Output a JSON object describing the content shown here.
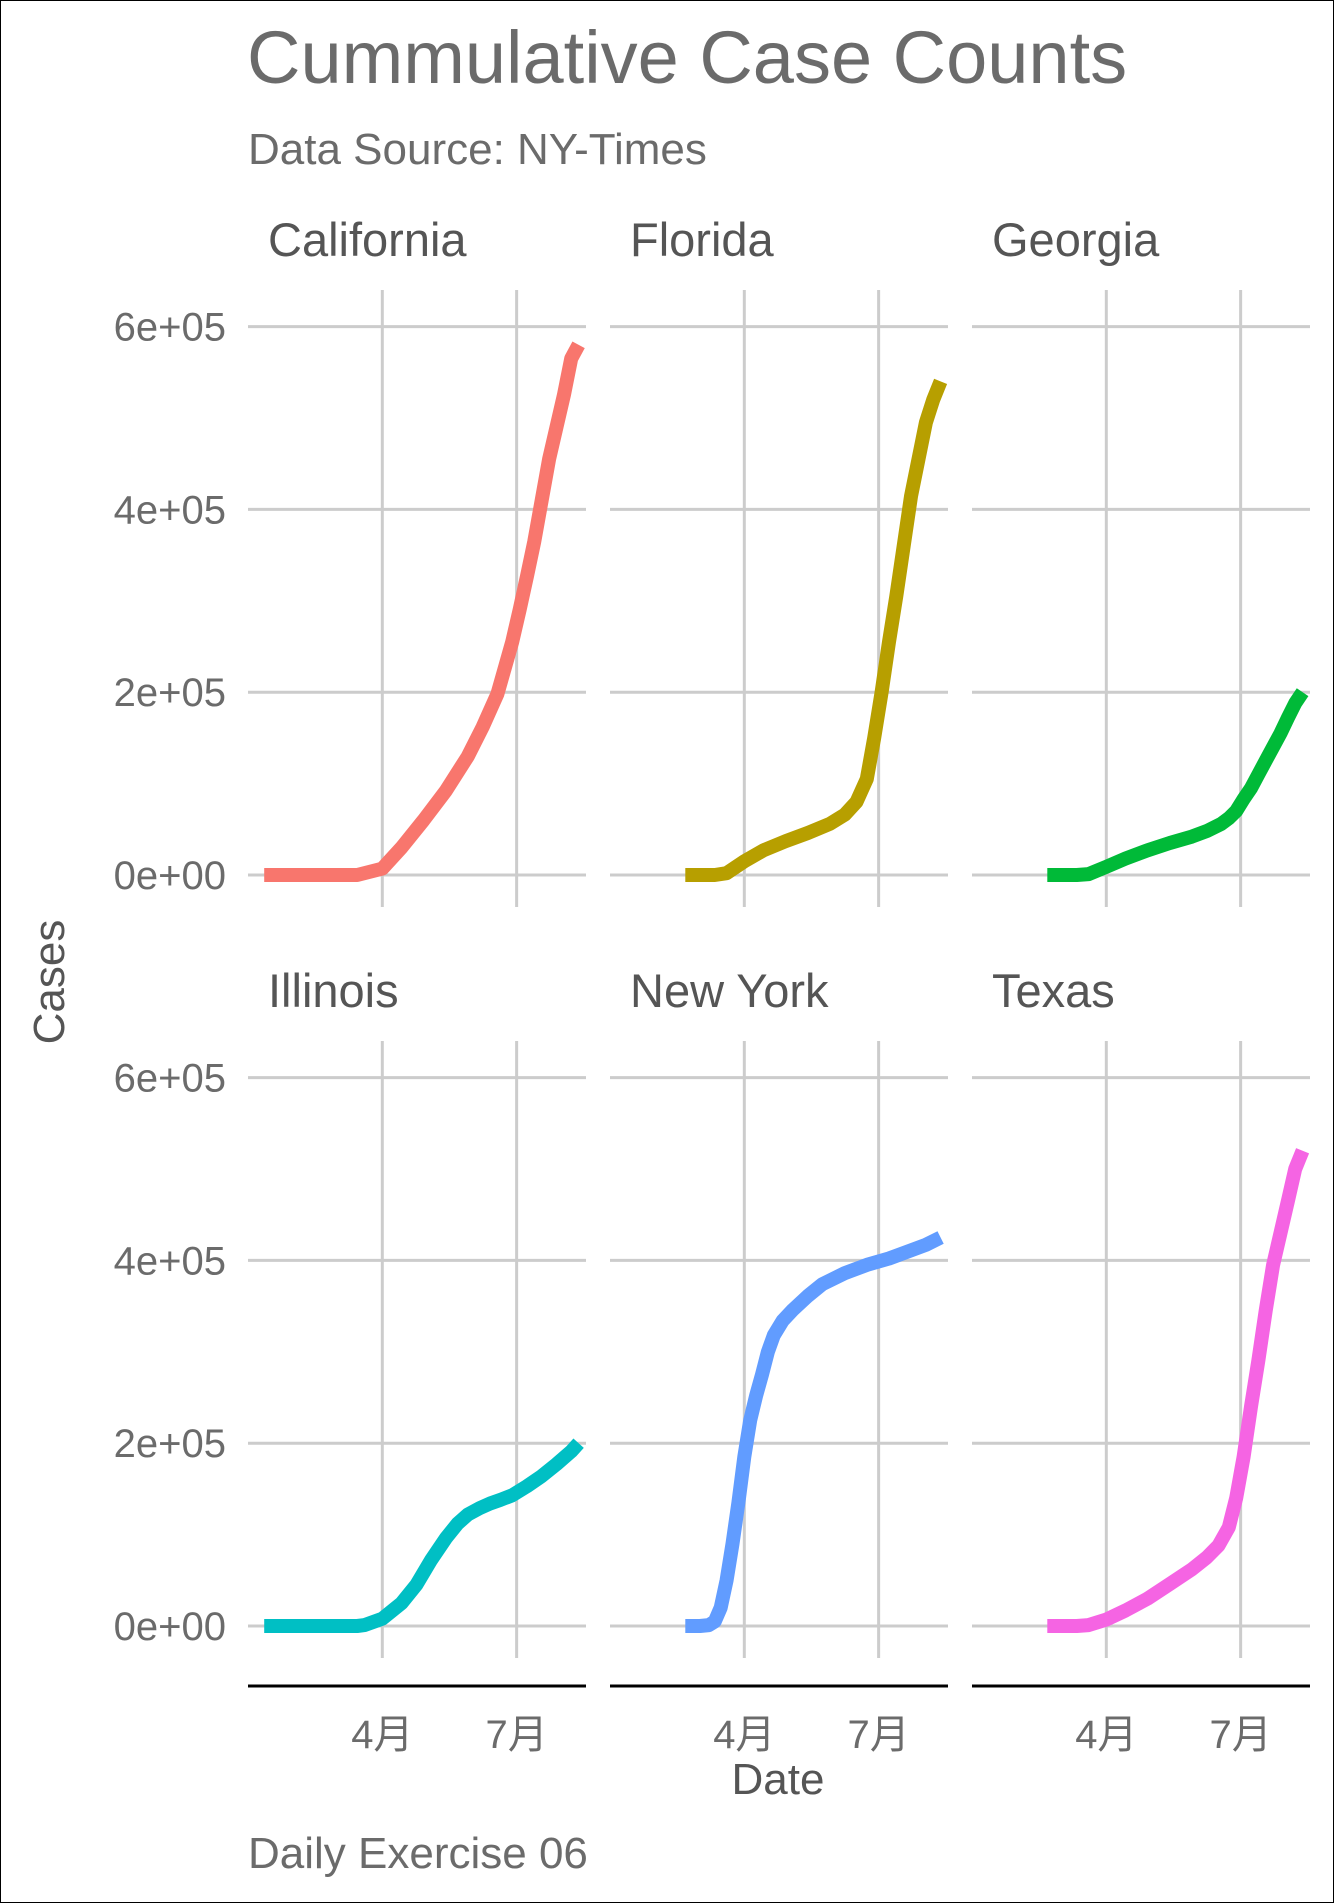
{
  "chart_data": {
    "type": "line",
    "title": "Cummulative Case Counts",
    "subtitle": "Data Source: NY-Times",
    "caption": "Daily Exercise 06",
    "xlabel": "Date",
    "ylabel": "Cases",
    "x_unit": "day-of-year 2020",
    "xlim": [
      1,
      230
    ],
    "ylim": [
      -35000,
      640000
    ],
    "y_ticks": [
      0,
      200000,
      400000,
      600000
    ],
    "y_tick_labels": [
      "0e+00",
      "2e+05",
      "4e+05",
      "6e+05"
    ],
    "x_ticks": [
      92,
      183
    ],
    "x_tick_labels": [
      "4月",
      "7月"
    ],
    "grid": true,
    "legend": "none",
    "facets": [
      {
        "name": "California",
        "color": "#F8766D",
        "x": [
          12,
          40,
          60,
          75,
          92,
          105,
          120,
          135,
          150,
          160,
          170,
          180,
          185,
          190,
          195,
          200,
          205,
          210,
          215,
          220,
          225
        ],
        "y": [
          0,
          0,
          0,
          0,
          7000,
          30000,
          60000,
          92000,
          130000,
          162000,
          198000,
          255000,
          290000,
          327000,
          365000,
          410000,
          455000,
          490000,
          525000,
          565000,
          580000
        ]
      },
      {
        "name": "Florida",
        "color": "#B79F00",
        "x": [
          52,
          65,
          72,
          80,
          92,
          105,
          120,
          135,
          150,
          160,
          168,
          175,
          180,
          185,
          190,
          195,
          200,
          205,
          210,
          215,
          220,
          225
        ],
        "y": [
          0,
          0,
          0,
          2000,
          15000,
          27000,
          37000,
          46000,
          56000,
          66000,
          80000,
          105000,
          150000,
          200000,
          255000,
          305000,
          360000,
          415000,
          455000,
          495000,
          520000,
          540000
        ]
      },
      {
        "name": "Georgia",
        "color": "#00BA38",
        "x": [
          52,
          65,
          72,
          80,
          92,
          105,
          120,
          135,
          150,
          160,
          170,
          175,
          180,
          185,
          190,
          195,
          200,
          205,
          210,
          215,
          220,
          225
        ],
        "y": [
          0,
          0,
          0,
          1000,
          9000,
          18000,
          27000,
          35000,
          42000,
          48000,
          56000,
          62000,
          70000,
          83000,
          95000,
          110000,
          125000,
          140000,
          155000,
          172000,
          188000,
          200000
        ]
      },
      {
        "name": "Illinois",
        "color": "#00BFC4",
        "x": [
          12,
          40,
          60,
          75,
          80,
          92,
          105,
          115,
          125,
          135,
          143,
          150,
          158,
          165,
          172,
          180,
          190,
          200,
          210,
          220,
          225
        ],
        "y": [
          0,
          0,
          0,
          0,
          1000,
          8000,
          25000,
          45000,
          72000,
          96000,
          112000,
          122000,
          129000,
          134000,
          138000,
          143000,
          153000,
          164000,
          177000,
          191000,
          200000
        ]
      },
      {
        "name": "New York",
        "color": "#619CFF",
        "x": [
          52,
          62,
          68,
          72,
          76,
          80,
          84,
          88,
          92,
          96,
          100,
          104,
          108,
          112,
          118,
          125,
          135,
          145,
          160,
          175,
          190,
          205,
          215,
          225
        ],
        "y": [
          0,
          0,
          1000,
          5000,
          20000,
          50000,
          90000,
          135000,
          185000,
          225000,
          252000,
          275000,
          300000,
          318000,
          334000,
          346000,
          361000,
          374000,
          386000,
          395000,
          402000,
          411000,
          417000,
          425000
        ]
      },
      {
        "name": "Texas",
        "color": "#F564E3",
        "x": [
          52,
          65,
          72,
          80,
          92,
          105,
          120,
          135,
          150,
          160,
          168,
          175,
          180,
          185,
          190,
          195,
          200,
          205,
          210,
          215,
          220,
          225
        ],
        "y": [
          0,
          0,
          0,
          1000,
          7000,
          17000,
          30000,
          46000,
          62000,
          75000,
          88000,
          108000,
          140000,
          185000,
          240000,
          290000,
          345000,
          395000,
          430000,
          465000,
          500000,
          520000
        ]
      }
    ]
  }
}
